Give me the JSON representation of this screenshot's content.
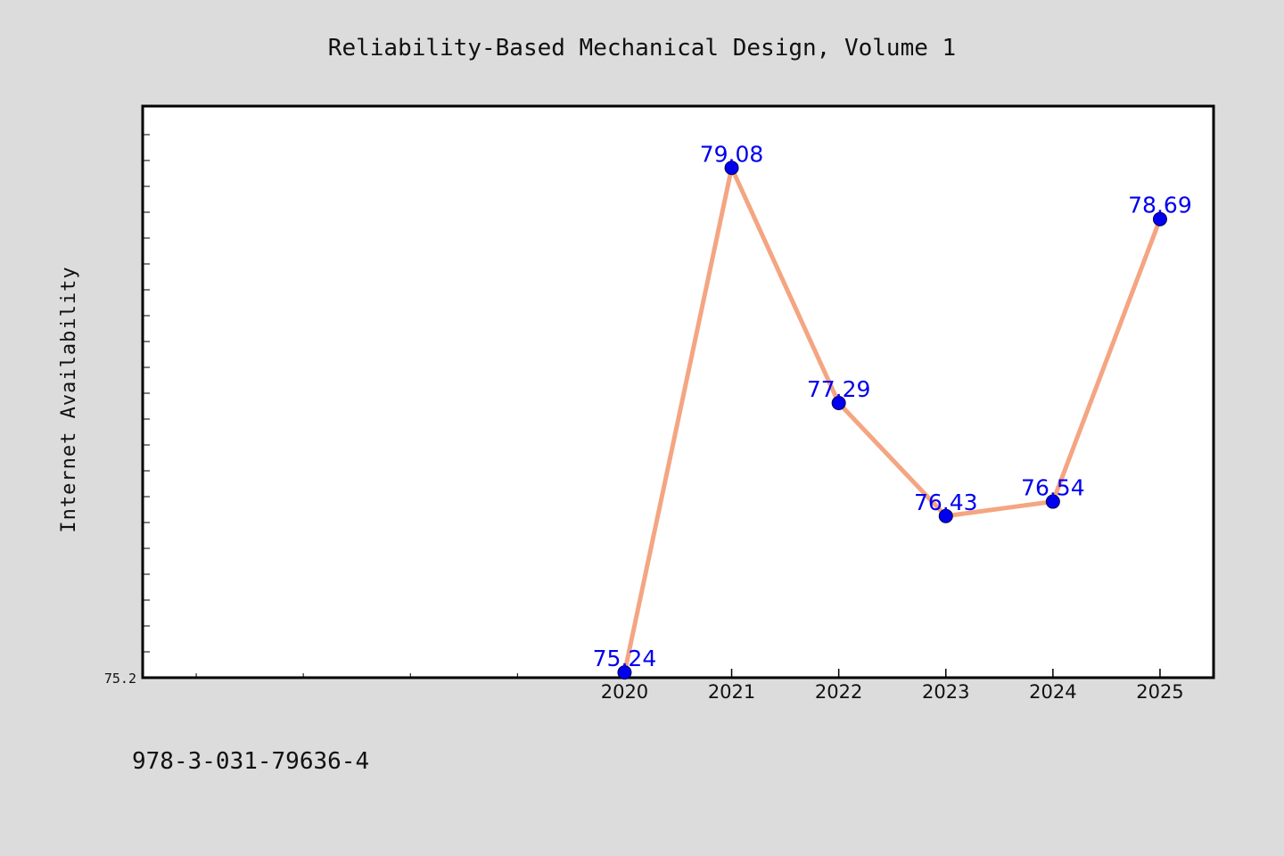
{
  "chart_data": {
    "type": "line",
    "title": "Reliability-Based Mechanical Design, Volume 1",
    "ylabel": "Internet Availability",
    "xlabel": "",
    "x": [
      2020,
      2021,
      2022,
      2023,
      2024,
      2025
    ],
    "x_tick_labels": [
      "2020",
      "2021",
      "2022",
      "2023",
      "2024",
      "2025"
    ],
    "x_range": [
      2015.5,
      2025.5
    ],
    "y_range": [
      75.2,
      79.55
    ],
    "y_tick_label": "75.2",
    "series": [
      {
        "values": [
          75.24,
          79.08,
          77.29,
          76.43,
          76.54,
          78.69
        ],
        "data_labels": [
          "75.24",
          "79.08",
          "77.29",
          "76.43",
          "76.54",
          "78.69"
        ]
      }
    ],
    "grid": false,
    "legend": "none"
  },
  "colors": {
    "background": "#dcdcdc",
    "plot_background": "#ffffff",
    "line": "#f4a582",
    "marker": "#0000ee",
    "data_label": "#0000ee"
  },
  "footer": {
    "isbn": "978-3-031-79636-4"
  }
}
